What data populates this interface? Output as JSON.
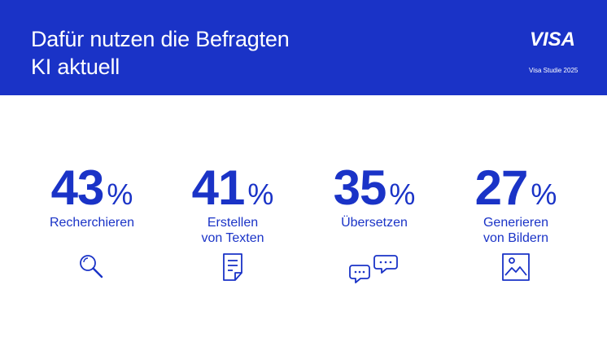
{
  "header": {
    "title_line1": "Dafür nutzen die Befragten",
    "title_line2": "KI aktuell",
    "logo": "VISA",
    "study": "Visa Studie 2025"
  },
  "colors": {
    "brand_blue": "#1a33c7",
    "background": "#ffffff"
  },
  "stats": [
    {
      "value": "43",
      "unit": "%",
      "label_line1": "Recherchieren",
      "label_line2": "",
      "icon": "magnifier-icon"
    },
    {
      "value": "41",
      "unit": "%",
      "label_line1": "Erstellen",
      "label_line2": "von Texten",
      "icon": "document-icon"
    },
    {
      "value": "35",
      "unit": "%",
      "label_line1": "Übersetzen",
      "label_line2": "",
      "icon": "speech-bubbles-icon"
    },
    {
      "value": "27",
      "unit": "%",
      "label_line1": "Generieren",
      "label_line2": "von Bildern",
      "icon": "image-icon"
    }
  ]
}
